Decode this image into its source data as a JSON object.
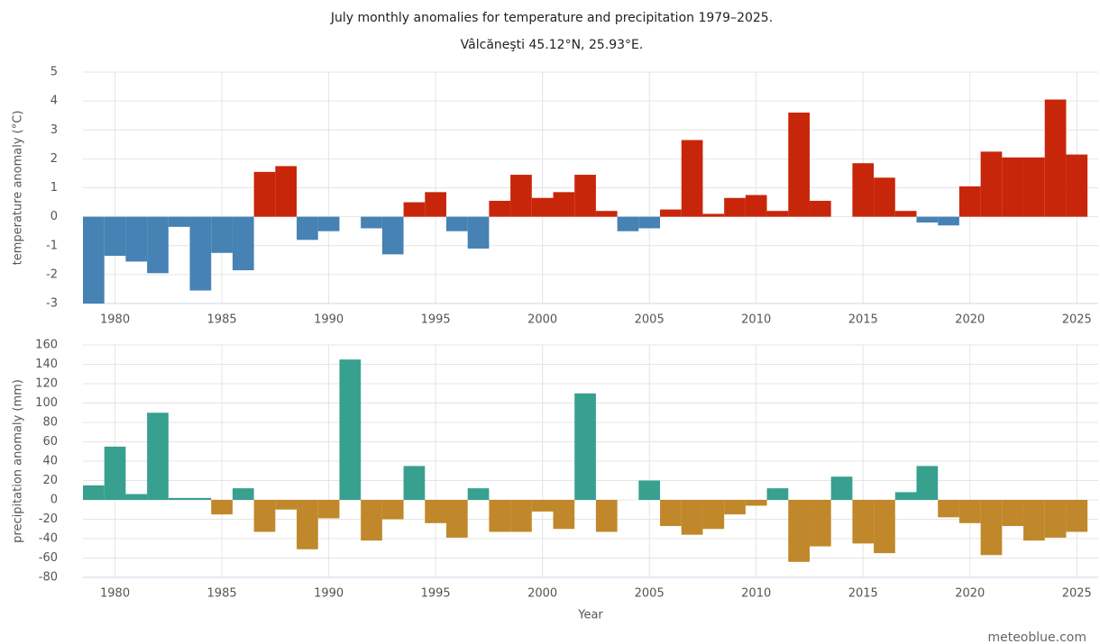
{
  "credit": "meteoblue.com",
  "chart_data": [
    {
      "type": "bar",
      "title": "July monthly anomalies for temperature and precipitation 1979–2025.",
      "subtitle": "Vâlcăneşti 45.12°N, 25.93°E.",
      "ylabel": "temperature anomaly (°C)",
      "x": [
        1979,
        1980,
        1981,
        1982,
        1983,
        1984,
        1985,
        1986,
        1987,
        1988,
        1989,
        1990,
        1991,
        1992,
        1993,
        1994,
        1995,
        1996,
        1997,
        1998,
        1999,
        2000,
        2001,
        2002,
        2003,
        2004,
        2005,
        2006,
        2007,
        2008,
        2009,
        2010,
        2011,
        2012,
        2013,
        2014,
        2015,
        2016,
        2017,
        2018,
        2019,
        2020,
        2021,
        2022,
        2023,
        2024,
        2025
      ],
      "values": [
        -3.0,
        -1.35,
        -1.55,
        -1.95,
        -0.35,
        -2.55,
        -1.25,
        -1.85,
        1.55,
        1.75,
        -0.8,
        -0.5,
        0,
        -0.4,
        -1.3,
        0.5,
        0.85,
        -0.5,
        -1.1,
        0.55,
        1.45,
        0.65,
        0.85,
        1.45,
        0.2,
        -0.5,
        -0.4,
        0.25,
        2.65,
        0.1,
        0.65,
        0.75,
        0.2,
        3.6,
        0.55,
        0,
        1.85,
        1.35,
        0.2,
        -0.2,
        -0.3,
        1.05,
        2.25,
        2.05,
        2.05,
        4.05,
        2.15
      ],
      "positive_color": "#c8260a",
      "negative_color": "#4682b4",
      "xlim": [
        1978.5,
        2026
      ],
      "xticks": [
        1980,
        1985,
        1990,
        1995,
        2000,
        2005,
        2010,
        2015,
        2020,
        2025
      ],
      "ylim": [
        -3,
        5
      ],
      "yticks": [
        -3,
        -2,
        -1,
        0,
        1,
        2,
        3,
        4,
        5
      ],
      "grid": true
    },
    {
      "type": "bar",
      "ylabel": "precipitation anomaly (mm)",
      "xlabel": "Year",
      "x": [
        1979,
        1980,
        1981,
        1982,
        1983,
        1984,
        1985,
        1986,
        1987,
        1988,
        1989,
        1990,
        1991,
        1992,
        1993,
        1994,
        1995,
        1996,
        1997,
        1998,
        1999,
        2000,
        2001,
        2002,
        2003,
        2004,
        2005,
        2006,
        2007,
        2008,
        2009,
        2010,
        2011,
        2012,
        2013,
        2014,
        2015,
        2016,
        2017,
        2018,
        2019,
        2020,
        2021,
        2022,
        2023,
        2024,
        2025
      ],
      "values": [
        15,
        55,
        6,
        90,
        2,
        2,
        -15,
        12,
        -33,
        -10,
        -51,
        -19,
        145,
        -42,
        -20,
        35,
        -24,
        -39,
        12,
        -33,
        -33,
        -12,
        -30,
        110,
        -33,
        0,
        20,
        -27,
        -36,
        -30,
        -15,
        -6,
        12,
        -64,
        -48,
        24,
        -45,
        -55,
        8,
        35,
        -18,
        -24,
        -57,
        -27,
        -42,
        -39,
        -33
      ],
      "positive_color": "#38a08f",
      "negative_color": "#c0882a",
      "xlim": [
        1978.5,
        2026
      ],
      "xticks": [
        1980,
        1985,
        1990,
        1995,
        2000,
        2005,
        2010,
        2015,
        2020,
        2025
      ],
      "ylim": [
        -80,
        160
      ],
      "yticks": [
        -80,
        -60,
        -40,
        -20,
        0,
        20,
        40,
        60,
        80,
        100,
        120,
        140,
        160
      ],
      "grid": true
    }
  ]
}
